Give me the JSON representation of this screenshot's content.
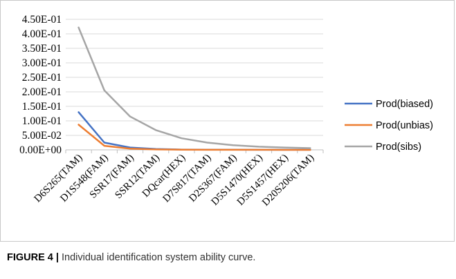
{
  "chart_data": {
    "type": "line",
    "categories": [
      "D6S265(TAM)",
      "D1S548(FAM)",
      "SSR17(FAM)",
      "SSR12(TAM)",
      "DQcar(HEX)",
      "D7S817(TAM)",
      "D2S367(FAM)",
      "D5S1470(HEX)",
      "D5S1457(HEX)",
      "D20S206(TAM)"
    ],
    "series": [
      {
        "name": "Prod(biased)",
        "color": "#4472c4",
        "values": [
          0.13,
          0.025,
          0.008,
          0.003,
          0.001,
          0.0006,
          0.0004,
          0.0003,
          0.0002,
          0.0002
        ]
      },
      {
        "name": "Prod(unbias)",
        "color": "#ed7d31",
        "values": [
          0.087,
          0.014,
          0.004,
          0.0015,
          0.0006,
          0.0003,
          0.0002,
          0.00015,
          0.0001,
          0.0001
        ]
      },
      {
        "name": "Prod(sibs)",
        "color": "#a5a5a5",
        "values": [
          0.422,
          0.205,
          0.115,
          0.068,
          0.04,
          0.025,
          0.016,
          0.011,
          0.008,
          0.006
        ]
      }
    ],
    "ylim": [
      0,
      0.45
    ],
    "yticks": [
      "0.00E+00",
      "5.00E-02",
      "1.00E-01",
      "1.50E-01",
      "2.00E-01",
      "2.50E-01",
      "3.00E-01",
      "3.50E-01",
      "4.00E-01",
      "4.50E-01"
    ],
    "ytick_values": [
      0,
      0.05,
      0.1,
      0.15,
      0.2,
      0.25,
      0.3,
      0.35,
      0.4,
      0.45
    ],
    "grid": true,
    "legend": "right",
    "title": "",
    "xlabel": "",
    "ylabel": ""
  },
  "caption": {
    "label": "FIGURE 4 |",
    "text": " Individual identification system ability curve."
  }
}
